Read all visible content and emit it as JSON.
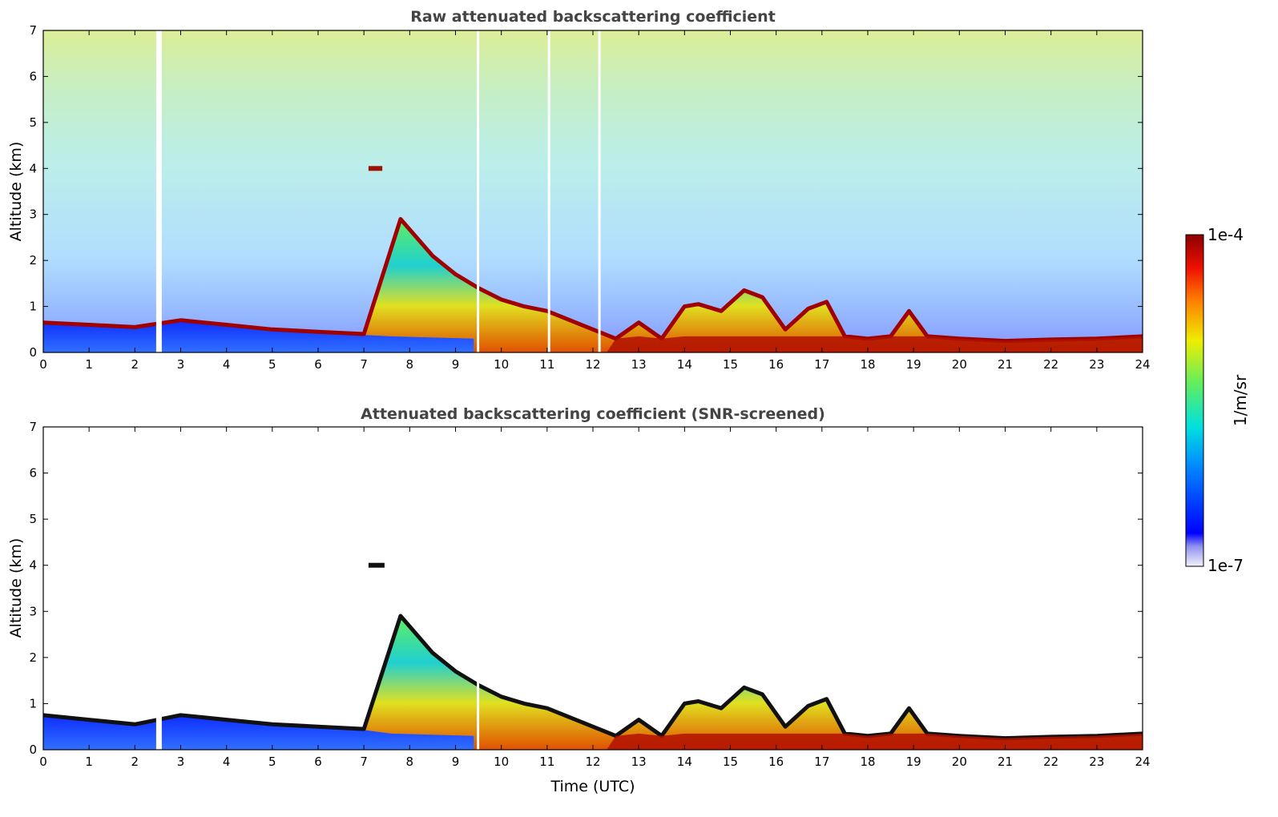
{
  "chart_data": [
    {
      "type": "heatmap",
      "title": "Raw attenuated backscattering coefficient",
      "xlabel": "",
      "ylabel": "Altitude (km)",
      "xlim": [
        0,
        24
      ],
      "ylim": [
        0,
        7
      ],
      "xticks": [
        "0",
        "1",
        "2",
        "3",
        "4",
        "5",
        "6",
        "7",
        "8",
        "9",
        "10",
        "11",
        "12",
        "13",
        "14",
        "15",
        "16",
        "17",
        "18",
        "19",
        "20",
        "21",
        "22",
        "23",
        "24"
      ],
      "yticks": [
        "0",
        "1",
        "2",
        "3",
        "4",
        "5",
        "6",
        "7"
      ],
      "noise_level": "high",
      "boundary_layer_top": {
        "x": [
          0,
          1,
          2,
          3,
          4,
          5,
          6,
          7,
          7.8,
          8.5,
          9.0,
          9.5,
          10,
          10.5,
          11,
          11.5,
          12,
          12.5,
          13,
          13.5,
          14,
          14.3,
          14.8,
          15.3,
          15.7,
          16.2,
          16.7,
          17.1,
          17.5,
          18,
          18.5,
          18.9,
          19.3,
          20,
          21,
          22,
          23,
          24
        ],
        "y": [
          0.65,
          0.6,
          0.55,
          0.7,
          0.6,
          0.5,
          0.45,
          0.4,
          2.9,
          2.1,
          1.7,
          1.4,
          1.15,
          1.0,
          0.9,
          0.7,
          0.5,
          0.3,
          0.65,
          0.3,
          1.0,
          1.05,
          0.9,
          1.35,
          1.2,
          0.5,
          0.95,
          1.1,
          0.35,
          0.3,
          0.35,
          0.9,
          0.35,
          0.3,
          0.25,
          0.28,
          0.3,
          0.35
        ]
      },
      "cloud_layers": [
        {
          "x_start": 7.1,
          "x_end": 7.4,
          "altitude": 4.0
        }
      ],
      "data_gaps": [
        2.5,
        9.5,
        11.05,
        12.15
      ]
    },
    {
      "type": "heatmap",
      "title": "Attenuated backscattering coefficient (SNR-screened)",
      "xlabel": "Time (UTC)",
      "ylabel": "Altitude (km)",
      "xlim": [
        0,
        24
      ],
      "ylim": [
        0,
        7
      ],
      "xticks": [
        "0",
        "1",
        "2",
        "3",
        "4",
        "5",
        "6",
        "7",
        "8",
        "9",
        "10",
        "11",
        "12",
        "13",
        "14",
        "15",
        "16",
        "17",
        "18",
        "19",
        "20",
        "21",
        "22",
        "23",
        "24"
      ],
      "yticks": [
        "0",
        "1",
        "2",
        "3",
        "4",
        "5",
        "6",
        "7"
      ],
      "noise_level": "screened",
      "boundary_layer_top": {
        "x": [
          0,
          1,
          2,
          3,
          4,
          5,
          6,
          7,
          7.8,
          8.5,
          9.0,
          9.5,
          10,
          10.5,
          11,
          11.5,
          12,
          12.5,
          13,
          13.5,
          14,
          14.3,
          14.8,
          15.3,
          15.7,
          16.2,
          16.7,
          17.1,
          17.5,
          18,
          18.5,
          18.9,
          19.3,
          20,
          21,
          22,
          23,
          24
        ],
        "y": [
          0.75,
          0.65,
          0.55,
          0.75,
          0.65,
          0.55,
          0.5,
          0.45,
          2.9,
          2.1,
          1.7,
          1.4,
          1.15,
          1.0,
          0.9,
          0.7,
          0.5,
          0.3,
          0.65,
          0.3,
          1.0,
          1.05,
          0.9,
          1.35,
          1.2,
          0.5,
          0.95,
          1.1,
          0.35,
          0.3,
          0.35,
          0.9,
          0.35,
          0.3,
          0.25,
          0.28,
          0.3,
          0.35
        ]
      },
      "cloud_layers": [
        {
          "x_start": 7.1,
          "x_end": 7.45,
          "altitude": 4.0
        }
      ],
      "data_gaps": [
        2.5,
        9.5
      ]
    }
  ],
  "colorbar": {
    "label": "1/m/sr",
    "max_label": "1e-4",
    "min_label": "1e-7",
    "min": 1e-07,
    "max": 0.0001,
    "scale": "log",
    "colormap": [
      "#f2f2fa",
      "#0000ff",
      "#0088ff",
      "#00e0e0",
      "#60ee60",
      "#eeee00",
      "#ff8000",
      "#ee1000",
      "#8b0000"
    ]
  }
}
